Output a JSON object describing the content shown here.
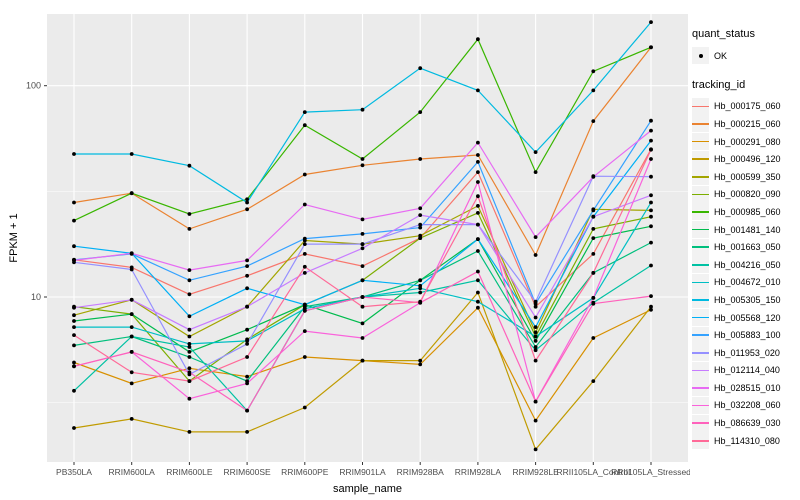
{
  "figure": {
    "x_axis_title": "sample_name",
    "y_axis_title": "FPKM + 1",
    "legend": {
      "quant_status_title": "quant_status",
      "quant_status_items": [
        "OK"
      ],
      "tracking_id_title": "tracking_id"
    }
  },
  "chart_data": {
    "type": "line",
    "title": "",
    "xlabel": "sample_name",
    "ylabel": "FPKM + 1",
    "y_scale": "log10",
    "ylim": [
      1.6,
      280
    ],
    "y_ticks": [
      10,
      100
    ],
    "y_minor_ticks": [
      3.162,
      31.62
    ],
    "grid": true,
    "legend_position": "right",
    "panel_background": "#EBEBEB",
    "gridline_color": "#FFFFFF",
    "marker": {
      "shape": "point",
      "color": "#000000",
      "legend_title": "quant_status",
      "legend_label": "OK"
    },
    "categories": [
      "PB350LA",
      "RRIM600LA",
      "RRIM600LE",
      "RRIM600SE",
      "RRIM600PE",
      "RRIM901LA",
      "RRIM928BA",
      "RRIM928LA",
      "RRIM928LE",
      "RRII105LA_Control",
      "RRII105LA_Stressed"
    ],
    "series": [
      {
        "name": "Hb_000175_060",
        "color": "#F8766D",
        "values": [
          15,
          13.8,
          10.3,
          12.6,
          16,
          14,
          19,
          39,
          9,
          16,
          50
        ]
      },
      {
        "name": "Hb_000215_060",
        "color": "#EA8331",
        "values": [
          28,
          31,
          21,
          26,
          38,
          42,
          45,
          47,
          15.8,
          68,
          152
        ]
      },
      {
        "name": "Hb_000291_080",
        "color": "#D89000",
        "values": [
          4.9,
          3.9,
          4.6,
          4.2,
          5.2,
          5.0,
          4.8,
          8.9,
          2.6,
          6.4,
          8.7
        ]
      },
      {
        "name": "Hb_000496_120",
        "color": "#C09B00",
        "values": [
          2.4,
          2.65,
          2.3,
          2.3,
          3.0,
          5.0,
          5.0,
          10.5,
          1.9,
          4.0,
          9.0
        ]
      },
      {
        "name": "Hb_000599_350",
        "color": "#A3A500",
        "values": [
          8.2,
          9.7,
          6.5,
          9.0,
          18.5,
          17.8,
          19.5,
          27,
          6.8,
          26,
          25.7
        ]
      },
      {
        "name": "Hb_000820_090",
        "color": "#7CAE00",
        "values": [
          9.0,
          8.3,
          4.0,
          6.3,
          9.2,
          12,
          19,
          25,
          6.5,
          21,
          24
        ]
      },
      {
        "name": "Hb_000985_060",
        "color": "#39B600",
        "values": [
          23,
          31,
          24.7,
          29,
          65,
          45,
          75,
          166,
          39,
          117,
          152
        ]
      },
      {
        "name": "Hb_001481_140",
        "color": "#00BB4E",
        "values": [
          7.7,
          8.3,
          5.5,
          7.0,
          9.2,
          7.5,
          12,
          18.8,
          6.2,
          19,
          21.6
        ]
      },
      {
        "name": "Hb_001663_050",
        "color": "#00BF7D",
        "values": [
          5.9,
          6.5,
          5.2,
          4.0,
          9.0,
          10,
          12,
          16.5,
          5.8,
          13,
          18.1
        ]
      },
      {
        "name": "Hb_004216_050",
        "color": "#00C1A3",
        "values": [
          3.6,
          6.5,
          5.8,
          2.9,
          8.6,
          10,
          10.5,
          12,
          5.6,
          9.4,
          14.1
        ]
      },
      {
        "name": "Hb_004672_010",
        "color": "#00BFC4",
        "values": [
          7.2,
          7.2,
          6.0,
          6.2,
          8.8,
          10,
          11,
          9.5,
          6.5,
          9.9,
          28
        ]
      },
      {
        "name": "Hb_005305_150",
        "color": "#00BAE0",
        "values": [
          47.5,
          47.5,
          41.8,
          28,
          75,
          77,
          121,
          95,
          48.5,
          95,
          200
        ]
      },
      {
        "name": "Hb_005568_120",
        "color": "#00B0F6",
        "values": [
          17.4,
          16.1,
          8.1,
          11,
          9.2,
          12,
          11.3,
          18.8,
          7.2,
          24,
          55
        ]
      },
      {
        "name": "Hb_005883_100",
        "color": "#35A2FF",
        "values": [
          15,
          16,
          12,
          14,
          18.9,
          19.9,
          21.3,
          43.6,
          9.3,
          25.7,
          68.3
        ]
      },
      {
        "name": "Hb_011953_020",
        "color": "#9590FF",
        "values": [
          14.6,
          13.5,
          4.3,
          6.0,
          17.8,
          17.8,
          22,
          22,
          9.5,
          37.3,
          37.1
        ]
      },
      {
        "name": "Hb_012114_040",
        "color": "#C77CFF",
        "values": [
          8.9,
          9.7,
          7.0,
          9.0,
          13,
          17,
          24.4,
          22,
          8.0,
          24,
          30.3
        ]
      },
      {
        "name": "Hb_028515_010",
        "color": "#E76BF3",
        "values": [
          14.9,
          16.1,
          13.4,
          14.9,
          27.4,
          23.3,
          26.3,
          53.8,
          19.2,
          37,
          61.3
        ]
      },
      {
        "name": "Hb_032208_060",
        "color": "#FA62DB",
        "values": [
          4.7,
          5.5,
          3.3,
          3.9,
          6.9,
          6.4,
          9.4,
          35,
          3.2,
          9.9,
          45
        ]
      },
      {
        "name": "Hb_086639_030",
        "color": "#FF62BC",
        "values": [
          4.7,
          5.5,
          4.4,
          2.9,
          8.6,
          10,
          9.4,
          13.2,
          3.2,
          9.3,
          10.1
        ]
      },
      {
        "name": "Hb_114310_080",
        "color": "#FF6A98",
        "values": [
          6.6,
          4.4,
          4.0,
          5.2,
          13.9,
          9.0,
          9.5,
          30,
          5.0,
          13,
          49.8
        ]
      }
    ]
  }
}
